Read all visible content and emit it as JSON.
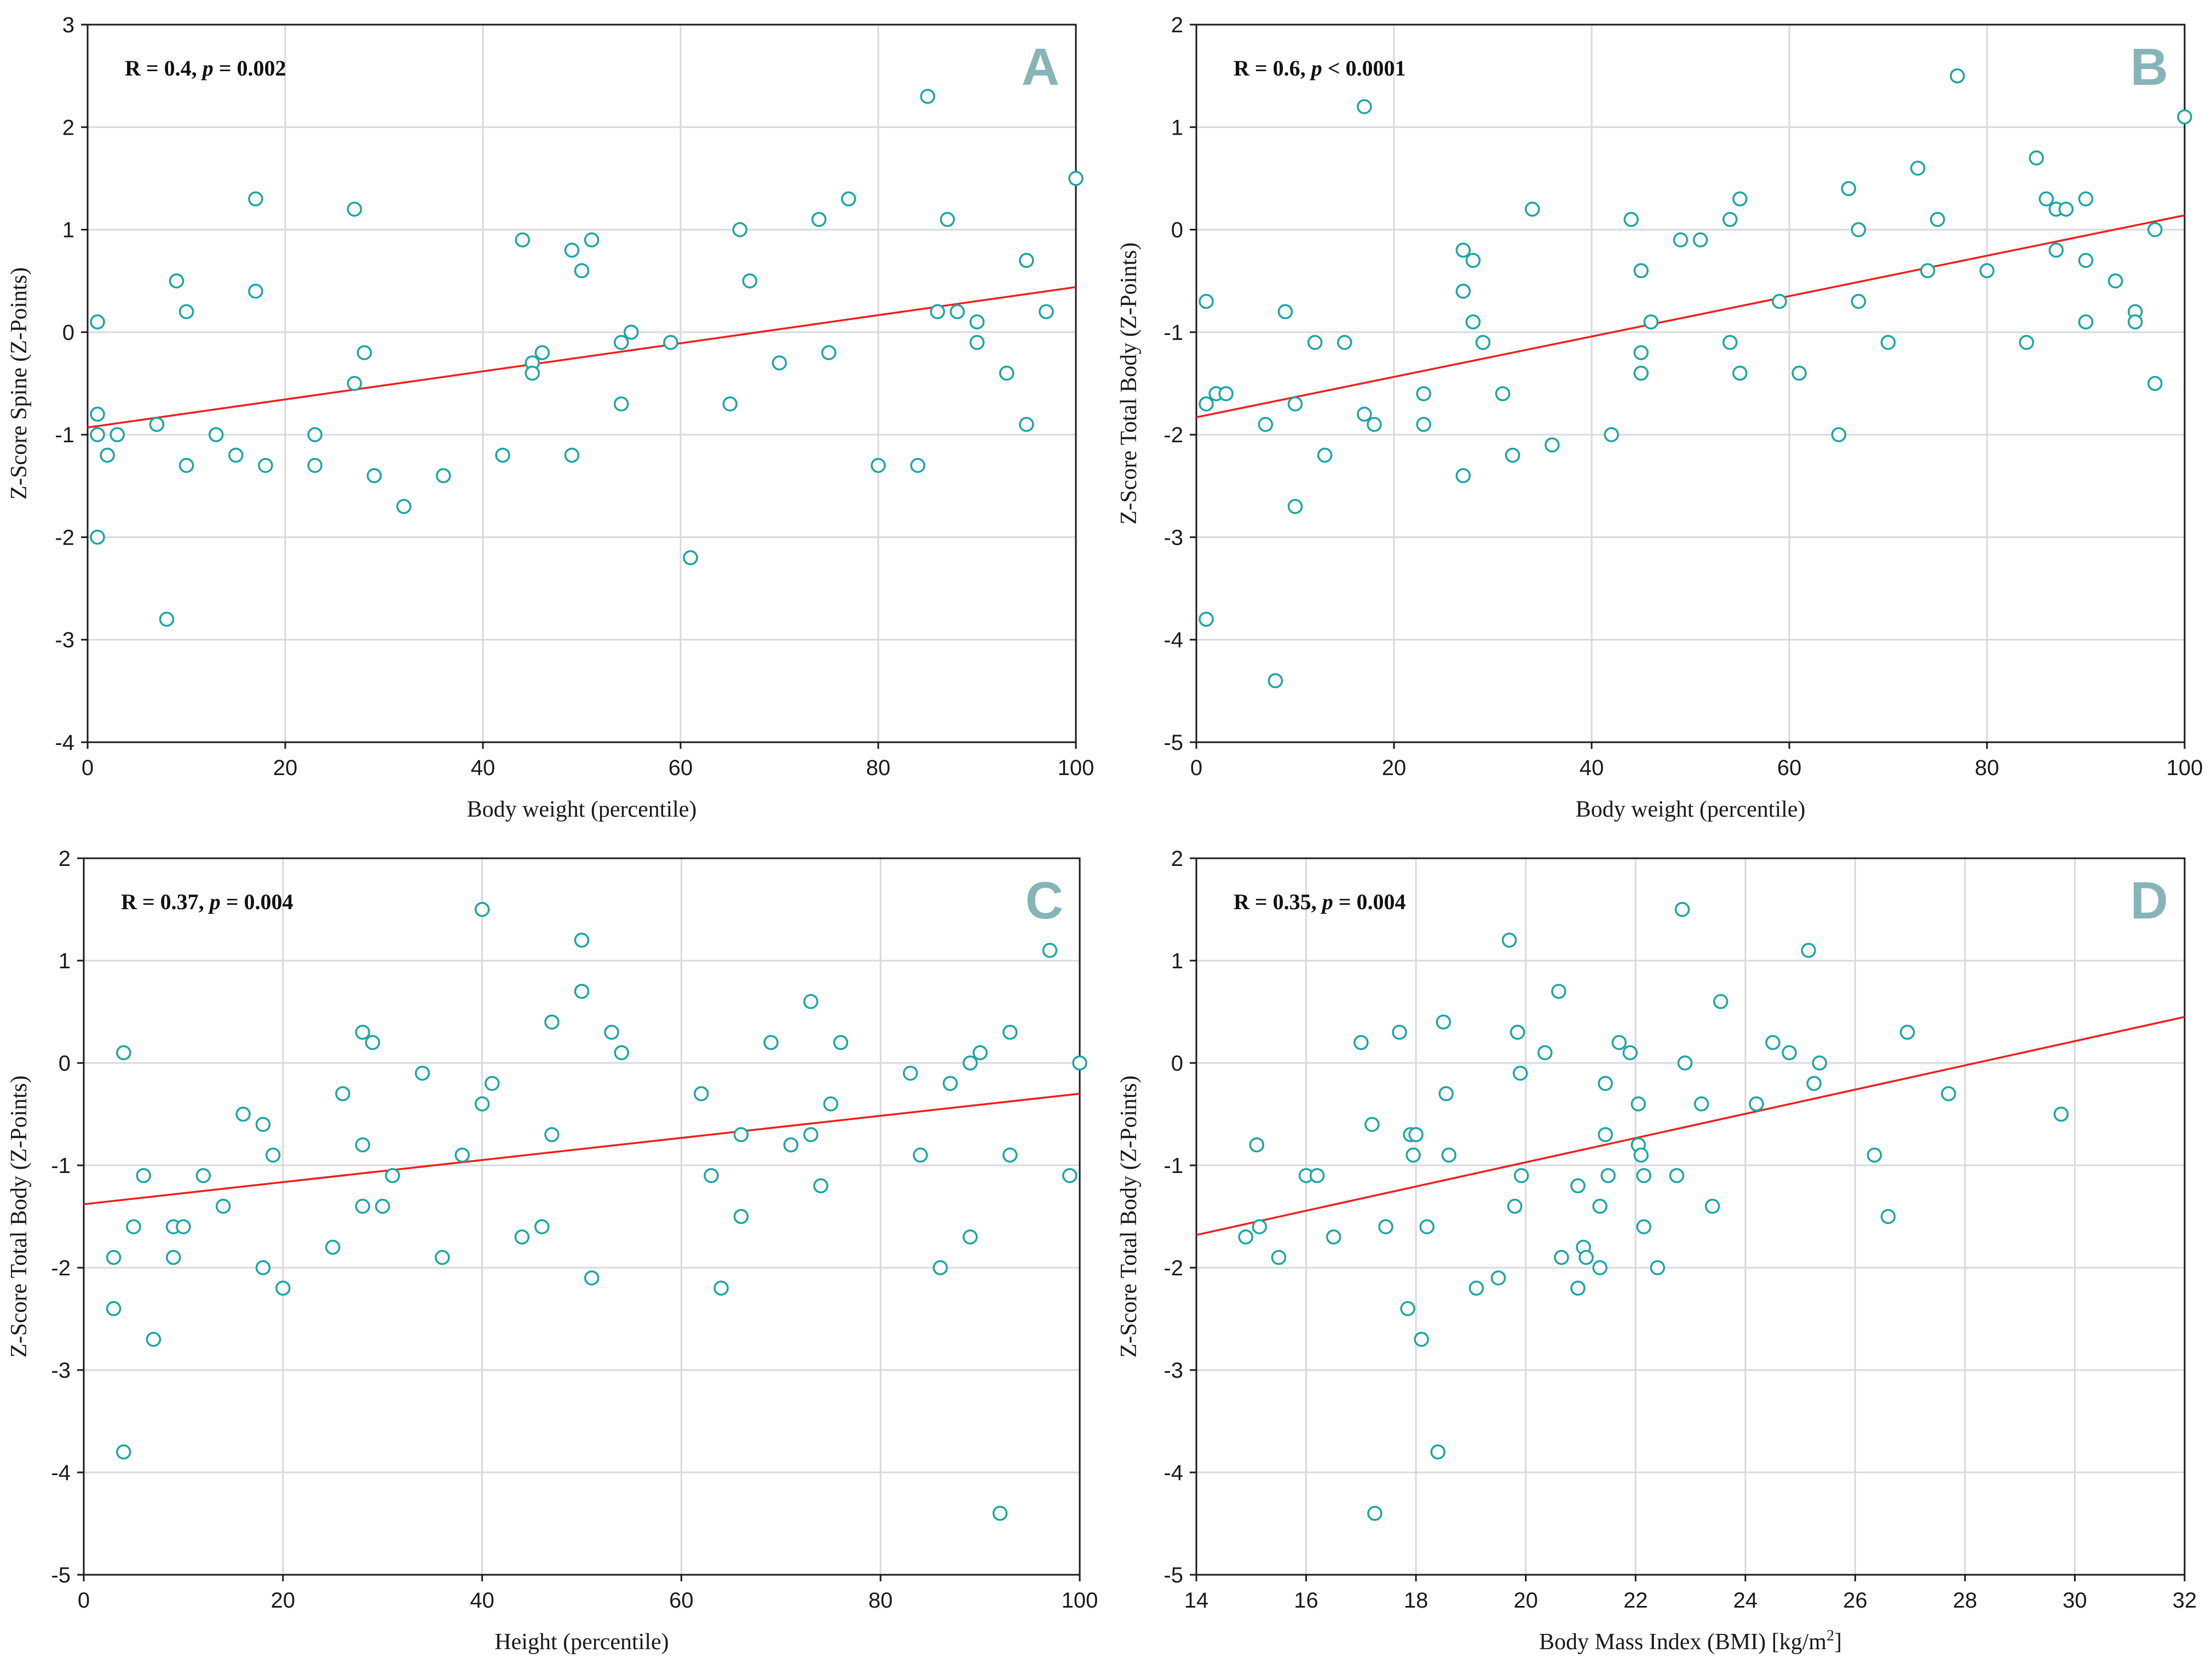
{
  "chart_data": [
    {
      "type": "scatter",
      "panel": "A",
      "stat_prefix": "R = 0.4, ",
      "stat_p": "p",
      "stat_suffix": " = 0.002",
      "xlabel": "Body weight (percentile)",
      "ylabel": "Z-Score Spine (Z-Points)",
      "xlim": [
        0,
        100
      ],
      "ylim": [
        -4,
        3
      ],
      "xticks": [
        0,
        20,
        40,
        60,
        80,
        100
      ],
      "yticks": [
        -4,
        -3,
        -2,
        -1,
        0,
        1,
        2,
        3
      ],
      "grid": true,
      "regression": [
        [
          0,
          -0.93
        ],
        [
          100,
          0.44
        ]
      ],
      "point_color": "#1ba5a5",
      "line_color": "#f21d1d",
      "points": [
        [
          1,
          0.1
        ],
        [
          1,
          -0.8
        ],
        [
          1,
          -1
        ],
        [
          1,
          -2
        ],
        [
          2,
          -1.2
        ],
        [
          3,
          -1
        ],
        [
          7,
          -0.9
        ],
        [
          8,
          -2.8
        ],
        [
          9,
          0.5
        ],
        [
          10,
          0.2
        ],
        [
          10,
          -1.3
        ],
        [
          13,
          -1
        ],
        [
          15,
          -1.2
        ],
        [
          17,
          1.3
        ],
        [
          17,
          0.4
        ],
        [
          18,
          -1.3
        ],
        [
          23,
          -1
        ],
        [
          23,
          -1.3
        ],
        [
          27,
          1.2
        ],
        [
          27,
          -0.5
        ],
        [
          28,
          -0.2
        ],
        [
          29,
          -1.4
        ],
        [
          32,
          -1.7
        ],
        [
          36,
          -1.4
        ],
        [
          42,
          -1.2
        ],
        [
          44,
          0.9
        ],
        [
          45,
          -0.3
        ],
        [
          45,
          -0.4
        ],
        [
          46,
          -0.2
        ],
        [
          49,
          0.8
        ],
        [
          49,
          -1.2
        ],
        [
          50,
          0.6
        ],
        [
          51,
          0.9
        ],
        [
          54,
          -0.1
        ],
        [
          54,
          -0.7
        ],
        [
          55,
          0
        ],
        [
          59,
          -0.1
        ],
        [
          61,
          -2.2
        ],
        [
          65,
          -0.7
        ],
        [
          66,
          1
        ],
        [
          67,
          0.5
        ],
        [
          70,
          -0.3
        ],
        [
          74,
          1.1
        ],
        [
          75,
          -0.2
        ],
        [
          77,
          1.3
        ],
        [
          80,
          -1.3
        ],
        [
          84,
          -1.3
        ],
        [
          85,
          2.3
        ],
        [
          86,
          0.2
        ],
        [
          87,
          1.1
        ],
        [
          88,
          0.2
        ],
        [
          90,
          0.1
        ],
        [
          90,
          -0.1
        ],
        [
          93,
          -0.4
        ],
        [
          95,
          0.7
        ],
        [
          95,
          -0.9
        ],
        [
          97,
          0.2
        ],
        [
          100,
          1.5
        ]
      ]
    },
    {
      "type": "scatter",
      "panel": "B",
      "stat_prefix": "R = 0.6, ",
      "stat_p": "p",
      "stat_suffix": " < 0.0001",
      "xlabel": "Body weight (percentile)",
      "ylabel": "Z-Score Total Body (Z-Points)",
      "xlim": [
        0,
        100
      ],
      "ylim": [
        -5,
        2
      ],
      "xticks": [
        0,
        20,
        40,
        60,
        80,
        100
      ],
      "yticks": [
        -5,
        -4,
        -3,
        -2,
        -1,
        0,
        1,
        2
      ],
      "grid": true,
      "regression": [
        [
          0,
          -1.83
        ],
        [
          100,
          0.14
        ]
      ],
      "point_color": "#1ba5a5",
      "line_color": "#f21d1d",
      "points": [
        [
          1,
          -0.7
        ],
        [
          1,
          -1.7
        ],
        [
          1,
          -3.8
        ],
        [
          2,
          -1.6
        ],
        [
          3,
          -1.6
        ],
        [
          7,
          -1.9
        ],
        [
          8,
          -4.4
        ],
        [
          9,
          -0.8
        ],
        [
          10,
          -1.7
        ],
        [
          10,
          -2.7
        ],
        [
          12,
          -1.1
        ],
        [
          13,
          -2.2
        ],
        [
          15,
          -1.1
        ],
        [
          17,
          1.2
        ],
        [
          17,
          -1.8
        ],
        [
          18,
          -1.9
        ],
        [
          23,
          -1.6
        ],
        [
          23,
          -1.9
        ],
        [
          27,
          -0.2
        ],
        [
          27,
          -0.6
        ],
        [
          27,
          -2.4
        ],
        [
          28,
          -0.3
        ],
        [
          28,
          -0.9
        ],
        [
          29,
          -1.1
        ],
        [
          31,
          -1.6
        ],
        [
          32,
          -2.2
        ],
        [
          34,
          0.2
        ],
        [
          36,
          -2.1
        ],
        [
          42,
          -2
        ],
        [
          44,
          0.1
        ],
        [
          45,
          -0.4
        ],
        [
          45,
          -1.2
        ],
        [
          45,
          -1.4
        ],
        [
          46,
          -0.9
        ],
        [
          49,
          -0.1
        ],
        [
          51,
          -0.1
        ],
        [
          54,
          0.1
        ],
        [
          54,
          -1.1
        ],
        [
          55,
          0.3
        ],
        [
          55,
          -1.4
        ],
        [
          59,
          -0.7
        ],
        [
          61,
          -1.4
        ],
        [
          65,
          -2
        ],
        [
          66,
          0.4
        ],
        [
          67,
          0
        ],
        [
          67,
          -0.7
        ],
        [
          70,
          -1.1
        ],
        [
          73,
          0.6
        ],
        [
          74,
          -0.4
        ],
        [
          75,
          0.1
        ],
        [
          77,
          1.5
        ],
        [
          80,
          -0.4
        ],
        [
          84,
          -1.1
        ],
        [
          85,
          0.7
        ],
        [
          86,
          0.3
        ],
        [
          87,
          0.2
        ],
        [
          87,
          -0.2
        ],
        [
          88,
          0.2
        ],
        [
          90,
          0.3
        ],
        [
          90,
          -0.3
        ],
        [
          90,
          -0.9
        ],
        [
          93,
          -0.5
        ],
        [
          95,
          -0.8
        ],
        [
          95,
          -0.9
        ],
        [
          97,
          0
        ],
        [
          97,
          -1.5
        ],
        [
          100,
          1.1
        ]
      ]
    },
    {
      "type": "scatter",
      "panel": "C",
      "stat_prefix": "R = 0.37, ",
      "stat_p": "p",
      "stat_suffix": " = 0.004",
      "xlabel": "Height (percentile)",
      "ylabel": "Z-Score Total Body (Z-Points)",
      "xlim": [
        0,
        100
      ],
      "ylim": [
        -5,
        2
      ],
      "xticks": [
        0,
        20,
        40,
        60,
        80,
        100
      ],
      "yticks": [
        -5,
        -4,
        -3,
        -2,
        -1,
        0,
        1,
        2
      ],
      "grid": true,
      "regression": [
        [
          0,
          -1.38
        ],
        [
          100,
          -0.3
        ]
      ],
      "point_color": "#1ba5a5",
      "line_color": "#f21d1d",
      "points": [
        [
          3,
          -1.9
        ],
        [
          3,
          -2.4
        ],
        [
          4,
          0.1
        ],
        [
          4,
          -3.8
        ],
        [
          5,
          -1.6
        ],
        [
          6,
          -1.1
        ],
        [
          7,
          -2.7
        ],
        [
          9,
          -1.6
        ],
        [
          9,
          -1.9
        ],
        [
          10,
          -1.6
        ],
        [
          12,
          -1.1
        ],
        [
          14,
          -1.4
        ],
        [
          16,
          -0.5
        ],
        [
          18,
          -0.6
        ],
        [
          18,
          -2
        ],
        [
          19,
          -0.9
        ],
        [
          20,
          -2.2
        ],
        [
          25,
          -1.8
        ],
        [
          26,
          -0.3
        ],
        [
          28,
          0.3
        ],
        [
          28,
          -0.8
        ],
        [
          28,
          -1.4
        ],
        [
          29,
          0.2
        ],
        [
          30,
          -1.4
        ],
        [
          31,
          -1.1
        ],
        [
          34,
          -0.1
        ],
        [
          36,
          -1.9
        ],
        [
          38,
          -0.9
        ],
        [
          40,
          1.5
        ],
        [
          40,
          -0.4
        ],
        [
          41,
          -0.2
        ],
        [
          44,
          -1.7
        ],
        [
          46,
          -1.6
        ],
        [
          47,
          0.4
        ],
        [
          47,
          -0.7
        ],
        [
          50,
          1.2
        ],
        [
          50,
          0.7
        ],
        [
          51,
          -2.1
        ],
        [
          53,
          0.3
        ],
        [
          54,
          0.1
        ],
        [
          62,
          -0.3
        ],
        [
          63,
          -1.1
        ],
        [
          64,
          -2.2
        ],
        [
          66,
          -0.7
        ],
        [
          66,
          -1.5
        ],
        [
          69,
          0.2
        ],
        [
          71,
          -0.8
        ],
        [
          73,
          0.6
        ],
        [
          73,
          -0.7
        ],
        [
          74,
          -1.2
        ],
        [
          75,
          -0.4
        ],
        [
          76,
          0.2
        ],
        [
          83,
          -0.1
        ],
        [
          84,
          -0.9
        ],
        [
          86,
          -2
        ],
        [
          87,
          -0.2
        ],
        [
          89,
          0
        ],
        [
          89,
          -1.7
        ],
        [
          90,
          0.1
        ],
        [
          92,
          -4.4
        ],
        [
          93,
          0.3
        ],
        [
          93,
          -0.9
        ],
        [
          97,
          1.1
        ],
        [
          99,
          -1.1
        ],
        [
          100,
          0
        ]
      ]
    },
    {
      "type": "scatter",
      "panel": "D",
      "stat_prefix": "R = 0.35, ",
      "stat_p": "p",
      "stat_suffix": " = 0.004",
      "xlabel_main": "Body Mass Index (BMI) [kg/m",
      "xlabel_sup": "2",
      "xlabel_end": "]",
      "ylabel": "Z-Score Total Body (Z-Points)",
      "xlim": [
        14,
        32
      ],
      "ylim": [
        -5,
        2
      ],
      "xticks": [
        14,
        16,
        18,
        20,
        22,
        24,
        26,
        28,
        30,
        32
      ],
      "yticks": [
        -5,
        -4,
        -3,
        -2,
        -1,
        0,
        1,
        2
      ],
      "grid": true,
      "regression": [
        [
          14,
          -1.68
        ],
        [
          32,
          0.45
        ]
      ],
      "point_color": "#1ba5a5",
      "line_color": "#f21d1d",
      "points": [
        [
          14.9,
          -1.7
        ],
        [
          15.1,
          -0.8
        ],
        [
          15.15,
          -1.6
        ],
        [
          15.5,
          -1.9
        ],
        [
          16,
          -1.1
        ],
        [
          16.2,
          -1.1
        ],
        [
          16.5,
          -1.7
        ],
        [
          17,
          0.2
        ],
        [
          17.2,
          -0.6
        ],
        [
          17.25,
          -4.4
        ],
        [
          17.45,
          -1.6
        ],
        [
          17.7,
          0.3
        ],
        [
          17.85,
          -2.4
        ],
        [
          17.9,
          -0.7
        ],
        [
          17.95,
          -0.9
        ],
        [
          18,
          -0.7
        ],
        [
          18.1,
          -2.7
        ],
        [
          18.2,
          -1.6
        ],
        [
          18.4,
          -3.8
        ],
        [
          18.5,
          0.4
        ],
        [
          18.55,
          -0.3
        ],
        [
          18.6,
          -0.9
        ],
        [
          19.1,
          -2.2
        ],
        [
          19.5,
          -2.1
        ],
        [
          19.7,
          1.2
        ],
        [
          19.8,
          -1.4
        ],
        [
          19.85,
          0.3
        ],
        [
          19.9,
          -0.1
        ],
        [
          19.92,
          -1.1
        ],
        [
          20.35,
          0.1
        ],
        [
          20.6,
          0.7
        ],
        [
          20.65,
          -1.9
        ],
        [
          20.95,
          -1.2
        ],
        [
          20.95,
          -2.2
        ],
        [
          21.05,
          -1.8
        ],
        [
          21.1,
          -1.9
        ],
        [
          21.35,
          -1.4
        ],
        [
          21.35,
          -2
        ],
        [
          21.45,
          -0.2
        ],
        [
          21.45,
          -0.7
        ],
        [
          21.5,
          -1.1
        ],
        [
          21.7,
          0.2
        ],
        [
          21.9,
          0.1
        ],
        [
          22.05,
          -0.4
        ],
        [
          22.05,
          -0.8
        ],
        [
          22.1,
          -0.9
        ],
        [
          22.15,
          -1.1
        ],
        [
          22.15,
          -1.6
        ],
        [
          22.4,
          -2
        ],
        [
          22.75,
          -1.1
        ],
        [
          22.85,
          1.5
        ],
        [
          22.9,
          0
        ],
        [
          23.2,
          -0.4
        ],
        [
          23.4,
          -1.4
        ],
        [
          23.55,
          0.6
        ],
        [
          24.2,
          -0.4
        ],
        [
          24.5,
          0.2
        ],
        [
          24.8,
          0.1
        ],
        [
          25.15,
          1.1
        ],
        [
          25.25,
          -0.2
        ],
        [
          25.35,
          0
        ],
        [
          26.35,
          -0.9
        ],
        [
          26.6,
          -1.5
        ],
        [
          26.95,
          0.3
        ],
        [
          27.7,
          -0.3
        ],
        [
          29.75,
          -0.5
        ]
      ]
    }
  ]
}
